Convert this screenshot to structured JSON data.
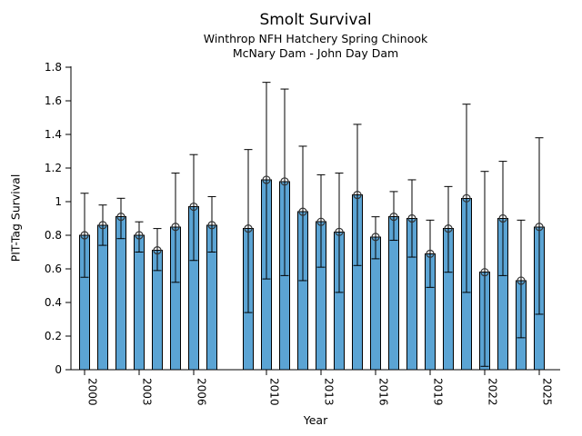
{
  "chart_data": {
    "type": "bar",
    "title": "Smolt Survival",
    "subtitle1": "Winthrop NFH Hatchery Spring Chinook",
    "subtitle2": "McNary Dam - John Day Dam",
    "xlabel": "Year",
    "ylabel": "PIT-Tag Survival",
    "ylim": [
      0,
      1.8
    ],
    "ytick_labels": [
      "0",
      "0.2",
      "0.4",
      "0.6",
      "0.8",
      "1",
      "1.2",
      "1.4",
      "1.6",
      "1.8"
    ],
    "ytick_step": 0.2,
    "xtick_years": [
      2000,
      2003,
      2006,
      2010,
      2013,
      2016,
      2019,
      2022,
      2025
    ],
    "grid": false,
    "legend": false,
    "missing_years": [
      2008
    ],
    "points": [
      {
        "year": 2000,
        "value": 0.8,
        "ci_low": 0.55,
        "ci_high": 1.05
      },
      {
        "year": 2001,
        "value": 0.86,
        "ci_low": 0.74,
        "ci_high": 0.98
      },
      {
        "year": 2002,
        "value": 0.91,
        "ci_low": 0.78,
        "ci_high": 1.02
      },
      {
        "year": 2003,
        "value": 0.8,
        "ci_low": 0.7,
        "ci_high": 0.88
      },
      {
        "year": 2004,
        "value": 0.71,
        "ci_low": 0.59,
        "ci_high": 0.84
      },
      {
        "year": 2005,
        "value": 0.85,
        "ci_low": 0.52,
        "ci_high": 1.17
      },
      {
        "year": 2006,
        "value": 0.97,
        "ci_low": 0.65,
        "ci_high": 1.28
      },
      {
        "year": 2007,
        "value": 0.86,
        "ci_low": 0.7,
        "ci_high": 1.03
      },
      {
        "year": 2009,
        "value": 0.84,
        "ci_low": 0.34,
        "ci_high": 1.31
      },
      {
        "year": 2010,
        "value": 1.13,
        "ci_low": 0.54,
        "ci_high": 1.71
      },
      {
        "year": 2011,
        "value": 1.12,
        "ci_low": 0.56,
        "ci_high": 1.67
      },
      {
        "year": 2012,
        "value": 0.94,
        "ci_low": 0.53,
        "ci_high": 1.33
      },
      {
        "year": 2013,
        "value": 0.88,
        "ci_low": 0.61,
        "ci_high": 1.16
      },
      {
        "year": 2014,
        "value": 0.82,
        "ci_low": 0.46,
        "ci_high": 1.17
      },
      {
        "year": 2015,
        "value": 1.04,
        "ci_low": 0.62,
        "ci_high": 1.46
      },
      {
        "year": 2016,
        "value": 0.79,
        "ci_low": 0.66,
        "ci_high": 0.91
      },
      {
        "year": 2017,
        "value": 0.91,
        "ci_low": 0.77,
        "ci_high": 1.06
      },
      {
        "year": 2018,
        "value": 0.9,
        "ci_low": 0.67,
        "ci_high": 1.13
      },
      {
        "year": 2019,
        "value": 0.69,
        "ci_low": 0.49,
        "ci_high": 0.89
      },
      {
        "year": 2020,
        "value": 0.84,
        "ci_low": 0.58,
        "ci_high": 1.09
      },
      {
        "year": 2021,
        "value": 1.02,
        "ci_low": 0.46,
        "ci_high": 1.58
      },
      {
        "year": 2022,
        "value": 0.58,
        "ci_low": 0.02,
        "ci_high": 1.18
      },
      {
        "year": 2023,
        "value": 0.9,
        "ci_low": 0.56,
        "ci_high": 1.24
      },
      {
        "year": 2024,
        "value": 0.53,
        "ci_low": 0.19,
        "ci_high": 0.89
      },
      {
        "year": 2025,
        "value": 0.85,
        "ci_low": 0.33,
        "ci_high": 1.38
      }
    ],
    "colors": {
      "bar_fill": "#5BA4D4",
      "bar_edge": "#000000",
      "error_bar": "#000000",
      "marker_edge": "#333333",
      "text": "#000000",
      "background": "#FFFFFF"
    }
  }
}
